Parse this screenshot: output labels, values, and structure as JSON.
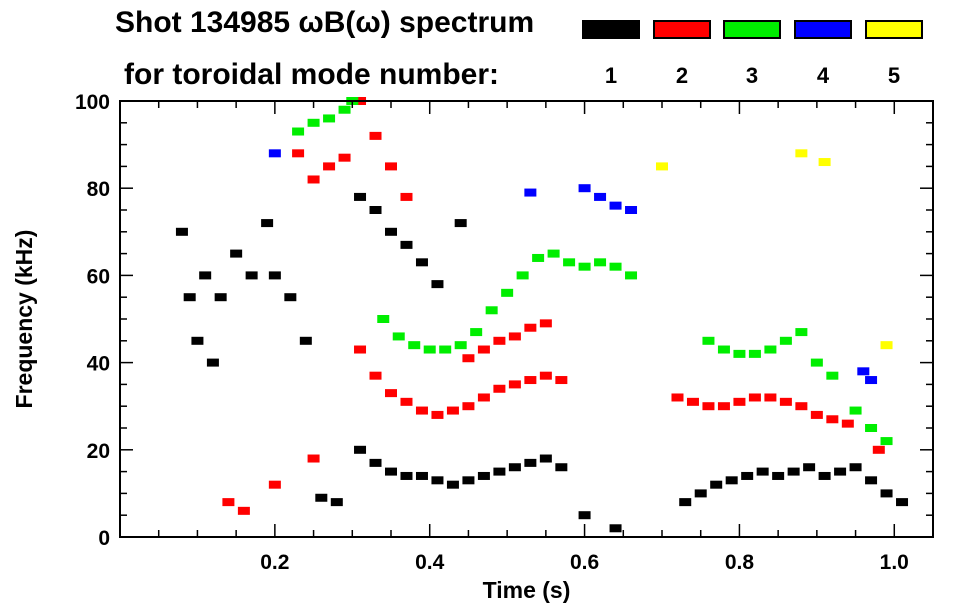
{
  "title_line1": "Shot 134985 ωB(ω) spectrum",
  "title_line2": "for toroidal mode number:",
  "legend": [
    {
      "label": "1",
      "color": "#000000"
    },
    {
      "label": "2",
      "color": "#ff0000"
    },
    {
      "label": "3",
      "color": "#00ee00"
    },
    {
      "label": "4",
      "color": "#0000ff"
    },
    {
      "label": "5",
      "color": "#ffff00"
    }
  ],
  "chart_data": {
    "type": "scatter",
    "title": "Shot 134985 ωB(ω) spectrum for toroidal mode number",
    "xlabel": "Time (s)",
    "ylabel": "Frequency (kHz)",
    "xlim": [
      0.0,
      1.05
    ],
    "ylim": [
      0,
      100
    ],
    "xticks": [
      0.2,
      0.4,
      0.6,
      0.8,
      1.0
    ],
    "xtick_labels": [
      "0.2",
      "0.4",
      "0.6",
      "0.8",
      "1.0"
    ],
    "yticks": [
      0,
      20,
      40,
      60,
      80,
      100
    ],
    "ytick_labels": [
      "0",
      "20",
      "40",
      "60",
      "80",
      "100"
    ],
    "grid": false,
    "series": [
      {
        "name": "n=1",
        "color": "#000000",
        "points": [
          [
            0.08,
            70
          ],
          [
            0.09,
            55
          ],
          [
            0.1,
            45
          ],
          [
            0.11,
            60
          ],
          [
            0.12,
            40
          ],
          [
            0.13,
            55
          ],
          [
            0.15,
            65
          ],
          [
            0.17,
            60
          ],
          [
            0.19,
            72
          ],
          [
            0.2,
            60
          ],
          [
            0.22,
            55
          ],
          [
            0.24,
            45
          ],
          [
            0.26,
            9
          ],
          [
            0.28,
            8
          ],
          [
            0.31,
            78
          ],
          [
            0.33,
            75
          ],
          [
            0.35,
            70
          ],
          [
            0.37,
            67
          ],
          [
            0.39,
            63
          ],
          [
            0.41,
            58
          ],
          [
            0.44,
            72
          ],
          [
            0.31,
            20
          ],
          [
            0.33,
            17
          ],
          [
            0.35,
            15
          ],
          [
            0.37,
            14
          ],
          [
            0.39,
            14
          ],
          [
            0.41,
            13
          ],
          [
            0.43,
            12
          ],
          [
            0.45,
            13
          ],
          [
            0.47,
            14
          ],
          [
            0.49,
            15
          ],
          [
            0.51,
            16
          ],
          [
            0.53,
            17
          ],
          [
            0.55,
            18
          ],
          [
            0.57,
            16
          ],
          [
            0.6,
            5
          ],
          [
            0.64,
            2
          ],
          [
            0.73,
            8
          ],
          [
            0.75,
            10
          ],
          [
            0.77,
            12
          ],
          [
            0.79,
            13
          ],
          [
            0.81,
            14
          ],
          [
            0.83,
            15
          ],
          [
            0.85,
            14
          ],
          [
            0.87,
            15
          ],
          [
            0.89,
            16
          ],
          [
            0.91,
            14
          ],
          [
            0.93,
            15
          ],
          [
            0.95,
            16
          ],
          [
            0.97,
            13
          ],
          [
            0.99,
            10
          ],
          [
            1.01,
            8
          ]
        ]
      },
      {
        "name": "n=2",
        "color": "#ff0000",
        "points": [
          [
            0.14,
            8
          ],
          [
            0.16,
            6
          ],
          [
            0.2,
            12
          ],
          [
            0.25,
            18
          ],
          [
            0.23,
            88
          ],
          [
            0.25,
            82
          ],
          [
            0.27,
            85
          ],
          [
            0.29,
            87
          ],
          [
            0.31,
            100
          ],
          [
            0.33,
            92
          ],
          [
            0.35,
            85
          ],
          [
            0.37,
            78
          ],
          [
            0.31,
            43
          ],
          [
            0.33,
            37
          ],
          [
            0.35,
            33
          ],
          [
            0.37,
            31
          ],
          [
            0.39,
            29
          ],
          [
            0.41,
            28
          ],
          [
            0.43,
            29
          ],
          [
            0.45,
            30
          ],
          [
            0.47,
            32
          ],
          [
            0.49,
            34
          ],
          [
            0.51,
            35
          ],
          [
            0.53,
            36
          ],
          [
            0.55,
            37
          ],
          [
            0.57,
            36
          ],
          [
            0.45,
            41
          ],
          [
            0.47,
            43
          ],
          [
            0.49,
            45
          ],
          [
            0.51,
            46
          ],
          [
            0.53,
            48
          ],
          [
            0.55,
            49
          ],
          [
            0.72,
            32
          ],
          [
            0.74,
            31
          ],
          [
            0.76,
            30
          ],
          [
            0.78,
            30
          ],
          [
            0.8,
            31
          ],
          [
            0.82,
            32
          ],
          [
            0.84,
            32
          ],
          [
            0.86,
            31
          ],
          [
            0.88,
            30
          ],
          [
            0.9,
            28
          ],
          [
            0.92,
            27
          ],
          [
            0.94,
            26
          ],
          [
            0.98,
            20
          ]
        ]
      },
      {
        "name": "n=3",
        "color": "#00ee00",
        "points": [
          [
            0.23,
            93
          ],
          [
            0.25,
            95
          ],
          [
            0.27,
            96
          ],
          [
            0.29,
            98
          ],
          [
            0.3,
            100
          ],
          [
            0.34,
            50
          ],
          [
            0.36,
            46
          ],
          [
            0.38,
            44
          ],
          [
            0.4,
            43
          ],
          [
            0.42,
            43
          ],
          [
            0.44,
            44
          ],
          [
            0.46,
            47
          ],
          [
            0.48,
            52
          ],
          [
            0.5,
            56
          ],
          [
            0.52,
            60
          ],
          [
            0.54,
            64
          ],
          [
            0.56,
            65
          ],
          [
            0.58,
            63
          ],
          [
            0.6,
            62
          ],
          [
            0.62,
            63
          ],
          [
            0.64,
            62
          ],
          [
            0.66,
            60
          ],
          [
            0.76,
            45
          ],
          [
            0.78,
            43
          ],
          [
            0.8,
            42
          ],
          [
            0.82,
            42
          ],
          [
            0.84,
            43
          ],
          [
            0.86,
            45
          ],
          [
            0.88,
            47
          ],
          [
            0.9,
            40
          ],
          [
            0.92,
            37
          ],
          [
            0.95,
            29
          ],
          [
            0.97,
            25
          ],
          [
            0.99,
            22
          ]
        ]
      },
      {
        "name": "n=4",
        "color": "#0000ff",
        "points": [
          [
            0.2,
            88
          ],
          [
            0.53,
            79
          ],
          [
            0.6,
            80
          ],
          [
            0.62,
            78
          ],
          [
            0.64,
            76
          ],
          [
            0.66,
            75
          ],
          [
            0.96,
            38
          ],
          [
            0.97,
            36
          ]
        ]
      },
      {
        "name": "n=5",
        "color": "#ffff00",
        "points": [
          [
            0.7,
            85
          ],
          [
            0.88,
            88
          ],
          [
            0.91,
            86
          ],
          [
            0.99,
            44
          ]
        ]
      }
    ]
  }
}
